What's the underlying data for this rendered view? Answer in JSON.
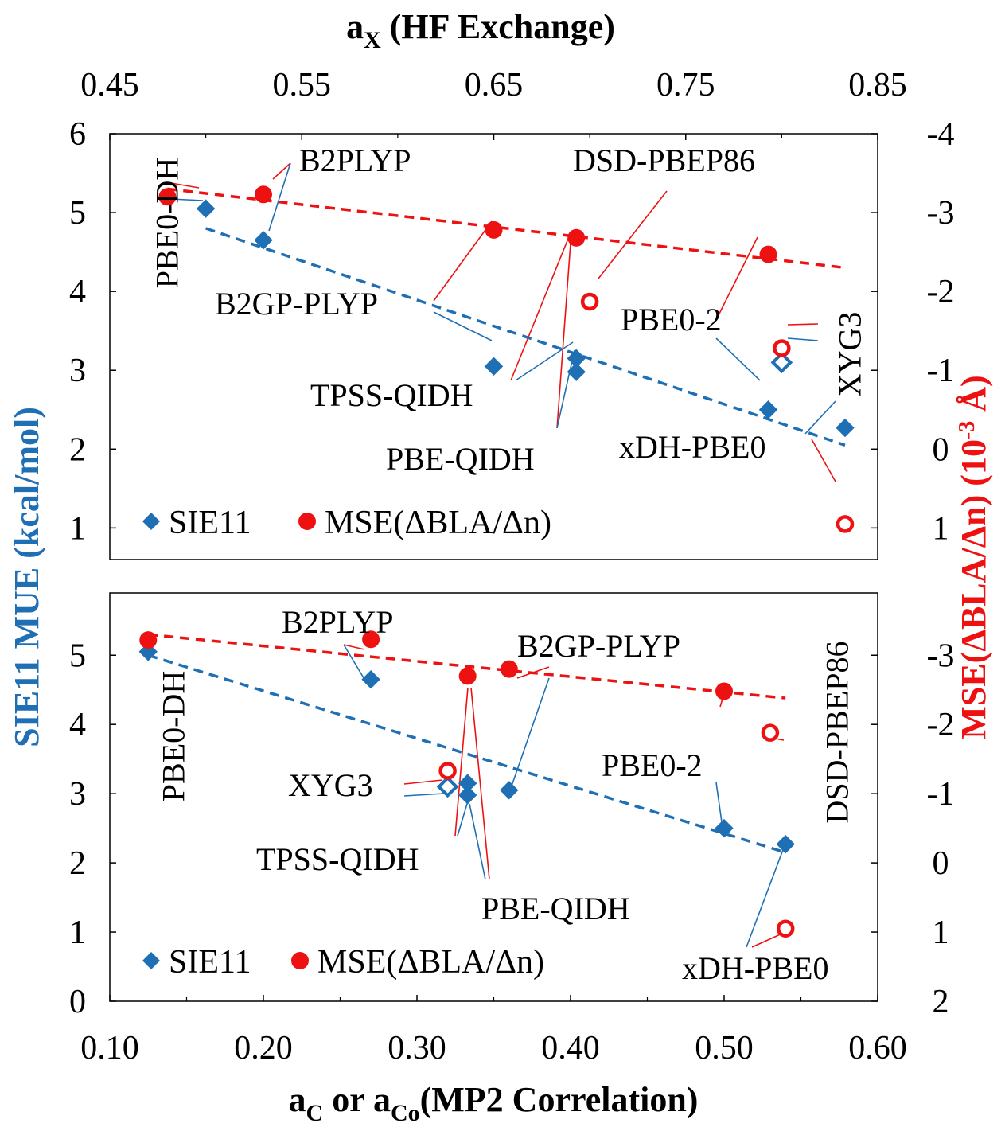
{
  "colors": {
    "blue": "#1f6fb5",
    "red": "#ee1111",
    "frame": "#000000"
  },
  "top_axis": {
    "title_main": "a",
    "title_sub": "X",
    "title_rest": " (HF Exchange)",
    "range": [
      0.45,
      0.85
    ],
    "ticks": [
      "0.45",
      "0.55",
      "0.65",
      "0.75",
      "0.85"
    ]
  },
  "bottom_axis": {
    "title_main1": "a",
    "title_sub1": "C",
    "title_mid": " or a",
    "title_sub2": "Co",
    "title_rest": "(MP2 Correlation)",
    "range": [
      0.1,
      0.6
    ],
    "ticks": [
      "0.10",
      "0.20",
      "0.30",
      "0.40",
      "0.50",
      "0.60"
    ]
  },
  "left_axis": {
    "title": "SIE11 MUE (kcal/mol)",
    "ticks_top": [
      "1",
      "2",
      "3",
      "4",
      "5",
      "6"
    ],
    "ticks_bottom": [
      "0",
      "1",
      "2",
      "3",
      "4",
      "5"
    ]
  },
  "right_axis": {
    "title_main": "MSE(ΔBLA/Δn) (10",
    "title_sup": "-3",
    "title_rest": " Å)",
    "ticks_top": [
      "1",
      "0",
      "-1",
      "-2",
      "-3",
      "-4"
    ],
    "ticks_bottom": [
      "2",
      "1",
      "0",
      "-1",
      "-2",
      "-3"
    ]
  },
  "legend": {
    "sie": "SIE11",
    "mse": "MSE(ΔBLA/Δn)"
  },
  "chart_data": [
    {
      "type": "scatter",
      "panel": "top",
      "x_label": "aX (HF Exchange)",
      "xlim": [
        0.45,
        0.85
      ],
      "ylim_left": [
        0.6,
        6
      ],
      "ylim_right": [
        1.4,
        -4
      ],
      "series": [
        {
          "name": "SIE11",
          "axis": "left",
          "points": [
            {
              "label": "PBE0-DH",
              "x": 0.5,
              "y": 5.05,
              "filled": true
            },
            {
              "label": "B2PLYP",
              "x": 0.53,
              "y": 4.65,
              "filled": true
            },
            {
              "label": "B2GP-PLYP",
              "x": 0.65,
              "y": 3.05,
              "filled": true
            },
            {
              "label": "TPSS-QIDH",
              "x": 0.693,
              "y": 3.15,
              "filled": true
            },
            {
              "label": "PBE-QIDH",
              "x": 0.693,
              "y": 2.98,
              "filled": true
            },
            {
              "label": "PBE0-2",
              "x": 0.793,
              "y": 2.5,
              "filled": true
            },
            {
              "label": "XYG3",
              "x": 0.8,
              "y": 3.1,
              "filled": false
            },
            {
              "label": "xDH-PBE0",
              "x": 0.833,
              "y": 2.27,
              "filled": true
            }
          ],
          "trend": [
            [
              0.5,
              4.8
            ],
            [
              0.833,
              2.05
            ]
          ]
        },
        {
          "name": "MSE(ΔBLA/Δn)",
          "axis": "right",
          "points": [
            {
              "label": "PBE0-DH",
              "x": 0.48,
              "y": -3.2,
              "filled": true
            },
            {
              "label": "B2PLYP",
              "x": 0.53,
              "y": -3.23,
              "filled": true
            },
            {
              "label": "B2GP-PLYP",
              "x": 0.65,
              "y": -2.78,
              "filled": true
            },
            {
              "label": "TPSS-QIDH",
              "x": 0.693,
              "y": -2.68,
              "filled": true
            },
            {
              "label": "DSD-PBEP86",
              "x": 0.7,
              "y": -1.87,
              "filled": false
            },
            {
              "label": "PBE0-2",
              "x": 0.793,
              "y": -2.47,
              "filled": true
            },
            {
              "label": "XYG3",
              "x": 0.8,
              "y": -1.28,
              "filled": false
            },
            {
              "label": "xDH-PBE0",
              "x": 0.833,
              "y": 0.95,
              "filled": false
            }
          ],
          "trend": [
            [
              0.48,
              -3.3
            ],
            [
              0.833,
              -2.3
            ]
          ]
        }
      ]
    },
    {
      "type": "scatter",
      "panel": "bottom",
      "x_label": "aC or aCo(MP2 Correlation)",
      "xlim": [
        0.1,
        0.6
      ],
      "ylim_left": [
        0,
        5.9
      ],
      "ylim_right": [
        2,
        -3.9
      ],
      "series": [
        {
          "name": "SIE11",
          "axis": "left",
          "points": [
            {
              "label": "PBE0-DH",
              "x": 0.125,
              "y": 5.05,
              "filled": true
            },
            {
              "label": "B2PLYP",
              "x": 0.27,
              "y": 4.65,
              "filled": true
            },
            {
              "label": "XYG3",
              "x": 0.32,
              "y": 3.1,
              "filled": false
            },
            {
              "label": "TPSS-QIDH",
              "x": 0.333,
              "y": 3.15,
              "filled": true
            },
            {
              "label": "PBE-QIDH",
              "x": 0.333,
              "y": 2.98,
              "filled": true
            },
            {
              "label": "B2GP-PLYP",
              "x": 0.36,
              "y": 3.05,
              "filled": true
            },
            {
              "label": "PBE0-2",
              "x": 0.5,
              "y": 2.5,
              "filled": true
            },
            {
              "label": "xDH-PBE0",
              "x": 0.54,
              "y": 2.27,
              "filled": true
            }
          ],
          "trend": [
            [
              0.125,
              5.0
            ],
            [
              0.54,
              2.15
            ]
          ]
        },
        {
          "name": "MSE(ΔBLA/Δn)",
          "axis": "right",
          "points": [
            {
              "label": "PBE0-DH",
              "x": 0.125,
              "y": -3.22,
              "filled": true
            },
            {
              "label": "B2PLYP",
              "x": 0.27,
              "y": -3.23,
              "filled": true
            },
            {
              "label": "XYG3",
              "x": 0.32,
              "y": -1.33,
              "filled": false
            },
            {
              "label": "TPSS-QIDH",
              "x": 0.333,
              "y": -2.7,
              "filled": true
            },
            {
              "label": "B2GP-PLYP",
              "x": 0.36,
              "y": -2.8,
              "filled": true
            },
            {
              "label": "PBE0-2",
              "x": 0.5,
              "y": -2.48,
              "filled": true
            },
            {
              "label": "DSD-PBEP86",
              "x": 0.53,
              "y": -1.88,
              "filled": false
            },
            {
              "label": "xDH-PBE0",
              "x": 0.54,
              "y": 0.95,
              "filled": false
            }
          ],
          "trend": [
            [
              0.125,
              -3.3
            ],
            [
              0.54,
              -2.38
            ]
          ]
        }
      ]
    }
  ]
}
